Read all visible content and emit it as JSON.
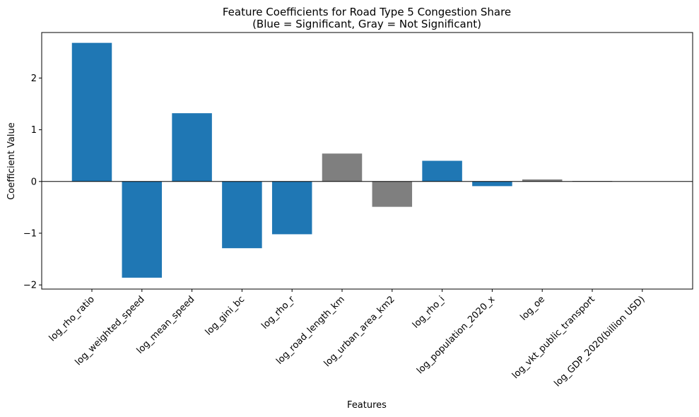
{
  "chart_data": {
    "type": "bar",
    "title": "Feature Coefficients for Road Type 5 Congestion Share",
    "subtitle": "(Blue = Significant, Gray = Not Significant)",
    "xlabel": "Features",
    "ylabel": "Coefficient Value",
    "ylim": [
      -2.08,
      2.88
    ],
    "yticks": [
      -2,
      -1,
      0,
      1,
      2
    ],
    "ytick_labels": [
      "−2",
      "−1",
      "0",
      "1",
      "2"
    ],
    "grid": false,
    "colors": {
      "significant": "#1f77b4",
      "not_significant": "#7f7f7f"
    },
    "categories": [
      "log_rho_ratio",
      "log_weighted_speed",
      "log_mean_speed",
      "log_gini_bc",
      "log_rho_r",
      "log_road_length_km",
      "log_urban_area_km2",
      "log_rho_i",
      "log_population_2020_x",
      "log_oe",
      "log_vkt_public_transport",
      "log_GDP_2020(billion USD)"
    ],
    "values": [
      2.68,
      -1.86,
      1.32,
      -1.29,
      -1.02,
      0.54,
      -0.49,
      0.4,
      -0.09,
      0.04,
      0.01,
      0.0
    ],
    "significant": [
      true,
      true,
      true,
      true,
      true,
      false,
      false,
      true,
      true,
      false,
      false,
      false
    ]
  }
}
